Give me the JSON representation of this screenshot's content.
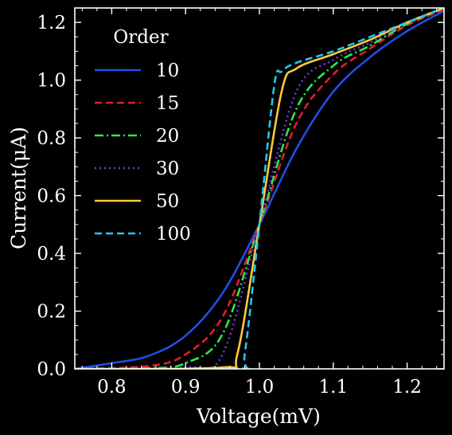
{
  "chart_data": {
    "type": "line",
    "title": "",
    "xlabel": "Voltage(mV)",
    "ylabel": "Current(μA)",
    "xlim": [
      0.75,
      1.25
    ],
    "ylim": [
      0.0,
      1.25
    ],
    "x_ticks": [
      0.8,
      0.9,
      1.0,
      1.1,
      1.2
    ],
    "x_tick_labels": [
      "0.8",
      "0.9",
      "1.0",
      "1.1",
      "1.2"
    ],
    "y_ticks": [
      0.0,
      0.2,
      0.4,
      0.6,
      0.8,
      1.0,
      1.2
    ],
    "y_tick_labels": [
      "0.0",
      "0.2",
      "0.4",
      "0.6",
      "0.8",
      "1.0",
      "1.2"
    ],
    "grid": false,
    "legend": {
      "title": "Order",
      "placement": "top-left"
    },
    "background": "#000000",
    "foreground": "#ffffff",
    "series": [
      {
        "name": "10",
        "order": 10,
        "color": "#1f4fe6",
        "dash": "solid",
        "points": [
          [
            0.75,
            0.0
          ],
          [
            0.8,
            0.02
          ],
          [
            0.85,
            0.045
          ],
          [
            0.9,
            0.115
          ],
          [
            0.95,
            0.262
          ],
          [
            1.0,
            0.5
          ],
          [
            1.05,
            0.762
          ],
          [
            1.1,
            0.96
          ],
          [
            1.15,
            1.08
          ],
          [
            1.2,
            1.17
          ],
          [
            1.25,
            1.24
          ]
        ]
      },
      {
        "name": "15",
        "order": 15,
        "color": "#e01e2e",
        "dash": "dashed",
        "points": [
          [
            0.75,
            0.0
          ],
          [
            0.85,
            0.01
          ],
          [
            0.9,
            0.05
          ],
          [
            0.95,
            0.18
          ],
          [
            1.0,
            0.5
          ],
          [
            1.05,
            0.85
          ],
          [
            1.1,
            1.02
          ],
          [
            1.15,
            1.11
          ],
          [
            1.2,
            1.19
          ],
          [
            1.25,
            1.245
          ]
        ]
      },
      {
        "name": "20",
        "order": 20,
        "color": "#2ee84a",
        "dash": "dashdot",
        "points": [
          [
            0.75,
            0.0
          ],
          [
            0.85,
            0.002
          ],
          [
            0.9,
            0.02
          ],
          [
            0.95,
            0.12
          ],
          [
            1.0,
            0.5
          ],
          [
            1.05,
            0.9
          ],
          [
            1.1,
            1.05
          ],
          [
            1.15,
            1.12
          ],
          [
            1.2,
            1.195
          ],
          [
            1.25,
            1.25
          ]
        ]
      },
      {
        "name": "30",
        "order": 30,
        "color": "#7b38d8",
        "dash": "dotted",
        "points": [
          [
            0.75,
            0.0
          ],
          [
            0.9,
            0.005
          ],
          [
            0.95,
            0.05
          ],
          [
            1.0,
            0.5
          ],
          [
            1.05,
            0.96
          ],
          [
            1.1,
            1.07
          ],
          [
            1.15,
            1.13
          ],
          [
            1.2,
            1.2
          ],
          [
            1.25,
            1.25
          ]
        ]
      },
      {
        "name": "50",
        "order": 50,
        "color": "#ffc93d",
        "dash": "solid",
        "points": [
          [
            0.75,
            0.0
          ],
          [
            0.95,
            0.005
          ],
          [
            0.97,
            0.05
          ],
          [
            1.0,
            0.5
          ],
          [
            1.03,
            0.96
          ],
          [
            1.05,
            1.04
          ],
          [
            1.1,
            1.09
          ],
          [
            1.15,
            1.14
          ],
          [
            1.2,
            1.2
          ],
          [
            1.25,
            1.25
          ]
        ]
      },
      {
        "name": "100",
        "order": 100,
        "color": "#1ec8f2",
        "dash": "dashed",
        "points": [
          [
            0.75,
            0.0
          ],
          [
            0.97,
            0.0
          ],
          [
            0.98,
            0.05
          ],
          [
            1.0,
            0.5
          ],
          [
            1.02,
            0.98
          ],
          [
            1.03,
            1.03
          ],
          [
            1.05,
            1.06
          ],
          [
            1.1,
            1.1
          ],
          [
            1.15,
            1.15
          ],
          [
            1.2,
            1.2
          ],
          [
            1.25,
            1.25
          ]
        ]
      }
    ]
  }
}
